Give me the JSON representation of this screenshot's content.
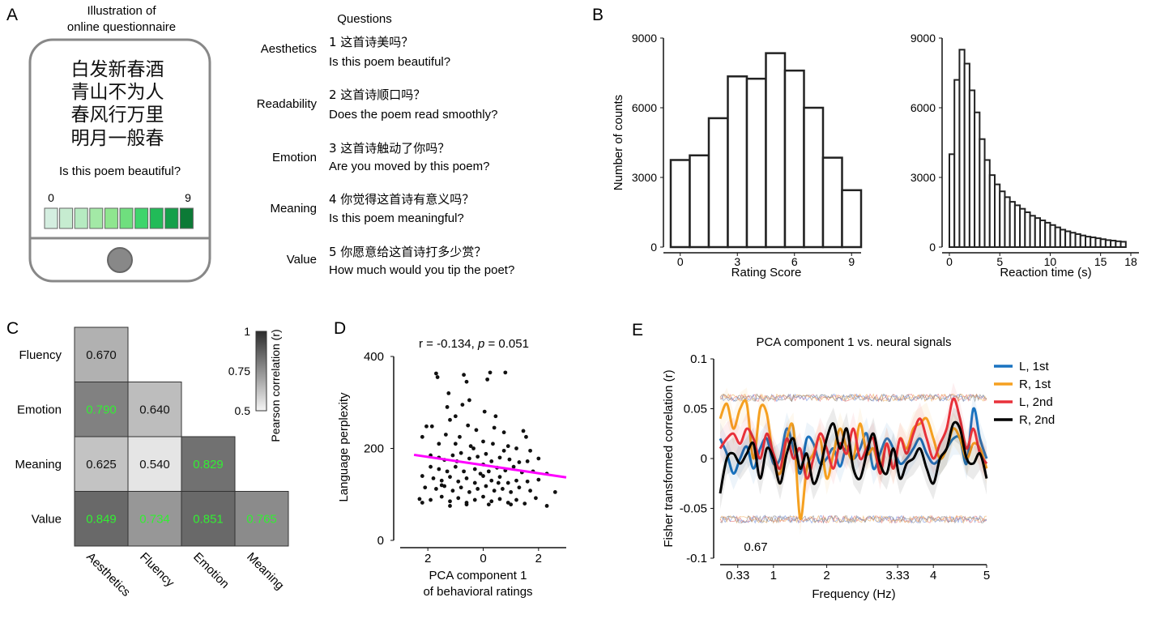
{
  "panels": {
    "A": {
      "letter": "A",
      "illustration_title": [
        "Illustration of",
        "online questionnaire"
      ],
      "poem_lines": [
        "白发新春酒",
        "青山不为人",
        "春风行万里",
        "明月一般春"
      ],
      "prompt": "Is this poem beautiful?",
      "scale_min": "0",
      "scale_max": "9",
      "scale_colors": [
        "#d4eee0",
        "#c6ecd0",
        "#b6ebc1",
        "#a3e9a6",
        "#8fe68f",
        "#6fdf7e",
        "#3ed56c",
        "#22bb58",
        "#14a04a",
        "#0c7a36"
      ],
      "questions_header": "Questions",
      "questions": [
        {
          "label": "Aesthetics",
          "zh": "1 这首诗美吗？",
          "en": "Is this poem beautiful?"
        },
        {
          "label": "Readability",
          "zh": "2 这首诗顺口吗？",
          "en": "Does the poem read smoothly?"
        },
        {
          "label": "Emotion",
          "zh": "3 这首诗触动了你吗？",
          "en": "Are you moved by this poem?"
        },
        {
          "label": "Meaning",
          "zh": "4 你觉得这首诗有意义吗？",
          "en": "Is this poem meaningful?"
        },
        {
          "label": "Value",
          "zh": "5 你愿意给这首诗打多少赏？",
          "en": "How much would you tip the poet?"
        }
      ]
    },
    "B": {
      "letter": "B"
    },
    "C": {
      "letter": "C"
    },
    "D": {
      "letter": "D"
    },
    "E": {
      "letter": "E"
    }
  },
  "chart_data": [
    {
      "id": "rating-histogram",
      "type": "bar",
      "xlabel": "Rating Score",
      "ylabel": "Number of counts",
      "categories": [
        0,
        1,
        2,
        3,
        4,
        5,
        6,
        7,
        8,
        9
      ],
      "values": [
        3750,
        3950,
        5550,
        7350,
        7250,
        8350,
        7600,
        6000,
        3850,
        2450
      ],
      "ylim": [
        0,
        9000
      ],
      "yticks": [
        "0",
        "3000",
        "6000",
        "9000"
      ],
      "xticks": [
        "0",
        "3",
        "6",
        "9"
      ]
    },
    {
      "id": "reaction-time-histogram",
      "type": "bar",
      "xlabel": "Reaction time (s)",
      "bin_width": 0.5,
      "values": [
        4000,
        7200,
        8500,
        7900,
        6750,
        5800,
        4650,
        3750,
        3100,
        2700,
        2400,
        2150,
        1950,
        1800,
        1650,
        1500,
        1350,
        1250,
        1150,
        1050,
        950,
        850,
        750,
        680,
        620,
        560,
        500,
        450,
        420,
        380,
        340,
        300,
        280,
        250,
        230
      ],
      "ylim": [
        0,
        9000
      ],
      "xlim": [
        0,
        18
      ],
      "yticks": [
        "0",
        "3000",
        "6000",
        "9000"
      ],
      "xticks": [
        "0",
        "5",
        "10",
        "15",
        "18"
      ]
    },
    {
      "id": "correlation-matrix",
      "type": "heatmap",
      "rows": [
        "Fluency",
        "Emotion",
        "Meaning",
        "Value"
      ],
      "columns": [
        "Aesthetics",
        "Fluency",
        "Emotion",
        "Meaning"
      ],
      "cells": [
        [
          "0.670",
          null,
          null,
          null
        ],
        [
          "0.790",
          "0.640",
          null,
          null
        ],
        [
          "0.625",
          "0.540",
          "0.829",
          null
        ],
        [
          "0.849",
          "0.734",
          "0.851",
          "0.765"
        ]
      ],
      "colorbar_label": "Pearson correlation (r)",
      "colorbar_ticks": [
        "1",
        "0.75",
        "0.5"
      ],
      "range": [
        0.5,
        1
      ],
      "highlight_text_color": "#33ee33"
    },
    {
      "id": "perplexity-scatter",
      "type": "scatter",
      "title_r": "r = -0.134, ",
      "title_p_label": "p",
      "title_p_value": " = 0.051",
      "xlabel": [
        "PCA component 1",
        "of behavioral ratings"
      ],
      "ylabel": "Language perplexity",
      "xlim": [
        -3,
        3
      ],
      "ylim": [
        0,
        400
      ],
      "xticks": [
        {
          "value": -2,
          "label": "2"
        },
        {
          "value": 0,
          "label": "0"
        },
        {
          "value": 2,
          "label": "2"
        }
      ],
      "yticks": [
        "0",
        "200",
        "400"
      ],
      "fit": {
        "x0": -2.5,
        "y0": 186,
        "x1": 3,
        "y1": 137,
        "color": "#ff00ff"
      },
      "points": [
        [
          -1.7,
          363
        ],
        [
          -1.65,
          355
        ],
        [
          -1.25,
          320
        ],
        [
          -0.7,
          360
        ],
        [
          -0.6,
          345
        ],
        [
          -0.75,
          295
        ],
        [
          -0.5,
          305
        ],
        [
          0.25,
          365
        ],
        [
          0.8,
          365
        ],
        [
          0.15,
          350
        ],
        [
          -1.3,
          290
        ],
        [
          -1.0,
          270
        ],
        [
          -0.55,
          250
        ],
        [
          0.05,
          280
        ],
        [
          0.45,
          270
        ],
        [
          -2.05,
          248
        ],
        [
          -1.85,
          248
        ],
        [
          -2.2,
          225
        ],
        [
          1.45,
          238
        ],
        [
          1.55,
          225
        ],
        [
          -1.35,
          230
        ],
        [
          -0.85,
          225
        ],
        [
          -0.25,
          240
        ],
        [
          0.4,
          245
        ],
        [
          0.75,
          235
        ],
        [
          -1.6,
          210
        ],
        [
          -1.0,
          210
        ],
        [
          -0.45,
          205
        ],
        [
          0.0,
          215
        ],
        [
          0.35,
          210
        ],
        [
          0.9,
          205
        ],
        [
          1.2,
          200
        ],
        [
          1.7,
          195
        ],
        [
          -1.9,
          185
        ],
        [
          -1.6,
          180
        ],
        [
          -1.4,
          175
        ],
        [
          -1.1,
          185
        ],
        [
          -0.8,
          190
        ],
        [
          -0.5,
          178
        ],
        [
          -0.2,
          182
        ],
        [
          0.1,
          188
        ],
        [
          0.3,
          172
        ],
        [
          0.6,
          180
        ],
        [
          0.95,
          176
        ],
        [
          1.3,
          170
        ],
        [
          1.6,
          172
        ],
        [
          2.0,
          178
        ],
        [
          -1.9,
          160
        ],
        [
          -1.6,
          155
        ],
        [
          -1.3,
          150
        ],
        [
          -1.0,
          160
        ],
        [
          -0.7,
          150
        ],
        [
          -0.3,
          155
        ],
        [
          0.0,
          165
        ],
        [
          0.2,
          150
        ],
        [
          0.5,
          158
        ],
        [
          0.8,
          152
        ],
        [
          1.1,
          160
        ],
        [
          1.4,
          148
        ],
        [
          1.8,
          150
        ],
        [
          2.3,
          145
        ],
        [
          -2.2,
          140
        ],
        [
          -1.8,
          135
        ],
        [
          -1.5,
          130
        ],
        [
          -1.2,
          138
        ],
        [
          -0.9,
          128
        ],
        [
          -0.6,
          135
        ],
        [
          -0.3,
          125
        ],
        [
          0.0,
          140
        ],
        [
          0.3,
          130
        ],
        [
          0.6,
          138
        ],
        [
          0.9,
          125
        ],
        [
          1.2,
          130
        ],
        [
          1.6,
          128
        ],
        [
          2.0,
          132
        ],
        [
          -2.1,
          115
        ],
        [
          -1.7,
          112
        ],
        [
          -1.4,
          118
        ],
        [
          -1.1,
          108
        ],
        [
          -0.8,
          115
        ],
        [
          -0.5,
          105
        ],
        [
          -0.2,
          112
        ],
        [
          0.1,
          118
        ],
        [
          0.4,
          108
        ],
        [
          0.7,
          112
        ],
        [
          1.0,
          105
        ],
        [
          1.3,
          115
        ],
        [
          1.7,
          108
        ],
        [
          2.6,
          105
        ],
        [
          -2.3,
          90
        ],
        [
          -1.9,
          88
        ],
        [
          -1.5,
          95
        ],
        [
          -1.2,
          85
        ],
        [
          -0.9,
          92
        ],
        [
          -0.6,
          82
        ],
        [
          -0.3,
          88
        ],
        [
          0.0,
          95
        ],
        [
          0.3,
          85
        ],
        [
          0.6,
          90
        ],
        [
          0.9,
          82
        ],
        [
          1.2,
          88
        ],
        [
          1.5,
          80
        ],
        [
          1.9,
          92
        ],
        [
          2.3,
          75
        ],
        [
          -2.2,
          82
        ],
        [
          -1.2,
          75
        ],
        [
          -0.6,
          78
        ],
        [
          0.2,
          78
        ],
        [
          1.0,
          78
        ],
        [
          -1.5,
          120
        ],
        [
          -0.1,
          145
        ],
        [
          0.55,
          125
        ],
        [
          -0.95,
          172
        ],
        [
          0.75,
          195
        ],
        [
          -0.35,
          200
        ],
        [
          -1.2,
          262
        ]
      ]
    },
    {
      "id": "neural-correlation",
      "type": "line",
      "title": "PCA component 1 vs. neural signals",
      "xlabel": "Frequency (Hz)",
      "ylabel": "Fisher transformed correlation (r)",
      "xlim": [
        0,
        5
      ],
      "ylim": [
        -0.1,
        0.1
      ],
      "xticks": [
        "0.33",
        "1",
        "2",
        "3.33",
        "4",
        "5"
      ],
      "xtick_values": [
        0.33,
        1,
        2,
        3.33,
        4,
        5
      ],
      "extra_label": "0.67",
      "yticks": [
        "0.1",
        "0.05",
        "0",
        "-0.05",
        "-0.1"
      ],
      "legend_position": "top-right",
      "band_noise_upper": 0.061,
      "band_noise_lower": -0.061,
      "series": [
        {
          "name": "L, 1st",
          "color": "#1a73c0",
          "values": [
            0.02,
            0.005,
            -0.015,
            0.0,
            0.012,
            -0.01,
            0.01,
            0.02,
            -0.005,
            0.0,
            0.03,
            0.01,
            -0.015,
            0.02,
            0.015,
            -0.005,
            0.0,
            0.01,
            -0.008,
            0.012,
            0.0,
            0.01,
            0.025,
            -0.01,
            0.005,
            0.02,
            0.01,
            -0.005,
            0.0,
            0.01,
            0.02,
            0.005,
            -0.005,
            0.0,
            0.01,
            0.02,
            0.02,
            -0.005,
            0.05,
            0.02,
            0.0
          ]
        },
        {
          "name": "R, 1st",
          "color": "#f5a020",
          "values": [
            0.04,
            0.055,
            0.03,
            0.05,
            0.055,
            0.0,
            0.05,
            0.045,
            0.0,
            -0.015,
            0.02,
            0.03,
            -0.06,
            -0.01,
            0.005,
            0.02,
            -0.02,
            0.005,
            0.03,
            0.01,
            0.0,
            0.035,
            0.005,
            0.01,
            -0.01,
            0.015,
            -0.01,
            0.02,
            0.01,
            0.03,
            0.035,
            0.04,
            0.02,
            0.0,
            0.01,
            0.03,
            0.02,
            0.0,
            0.015,
            0.01,
            -0.01
          ]
        },
        {
          "name": "L, 2nd",
          "color": "#e8313a",
          "values": [
            0.01,
            0.02,
            0.025,
            0.015,
            0.03,
            0.02,
            0.0,
            0.025,
            0.005,
            -0.01,
            0.02,
            0.0,
            0.01,
            -0.02,
            0.0,
            0.025,
            0.01,
            -0.01,
            0.015,
            0.005,
            0.03,
            0.0,
            0.01,
            0.02,
            -0.015,
            0.015,
            -0.01,
            0.02,
            0.005,
            0.025,
            0.04,
            0.02,
            0.0,
            0.015,
            0.03,
            0.06,
            0.04,
            0.01,
            0.03,
            0.005,
            -0.005
          ]
        },
        {
          "name": "R, 2nd",
          "color": "#000000",
          "values": [
            -0.035,
            0.0,
            0.005,
            -0.005,
            0.005,
            0.015,
            -0.02,
            0.01,
            0.0,
            -0.025,
            0.005,
            0.02,
            -0.01,
            0.005,
            -0.025,
            -0.01,
            0.02,
            0.035,
            0.01,
            0.03,
            -0.01,
            -0.02,
            0.005,
            0.025,
            -0.005,
            -0.015,
            0.01,
            -0.02,
            -0.005,
            0.0,
            0.01,
            -0.01,
            -0.025,
            0.0,
            0.01,
            0.035,
            0.03,
            0.0,
            -0.005,
            0.005,
            -0.02
          ]
        }
      ]
    }
  ]
}
